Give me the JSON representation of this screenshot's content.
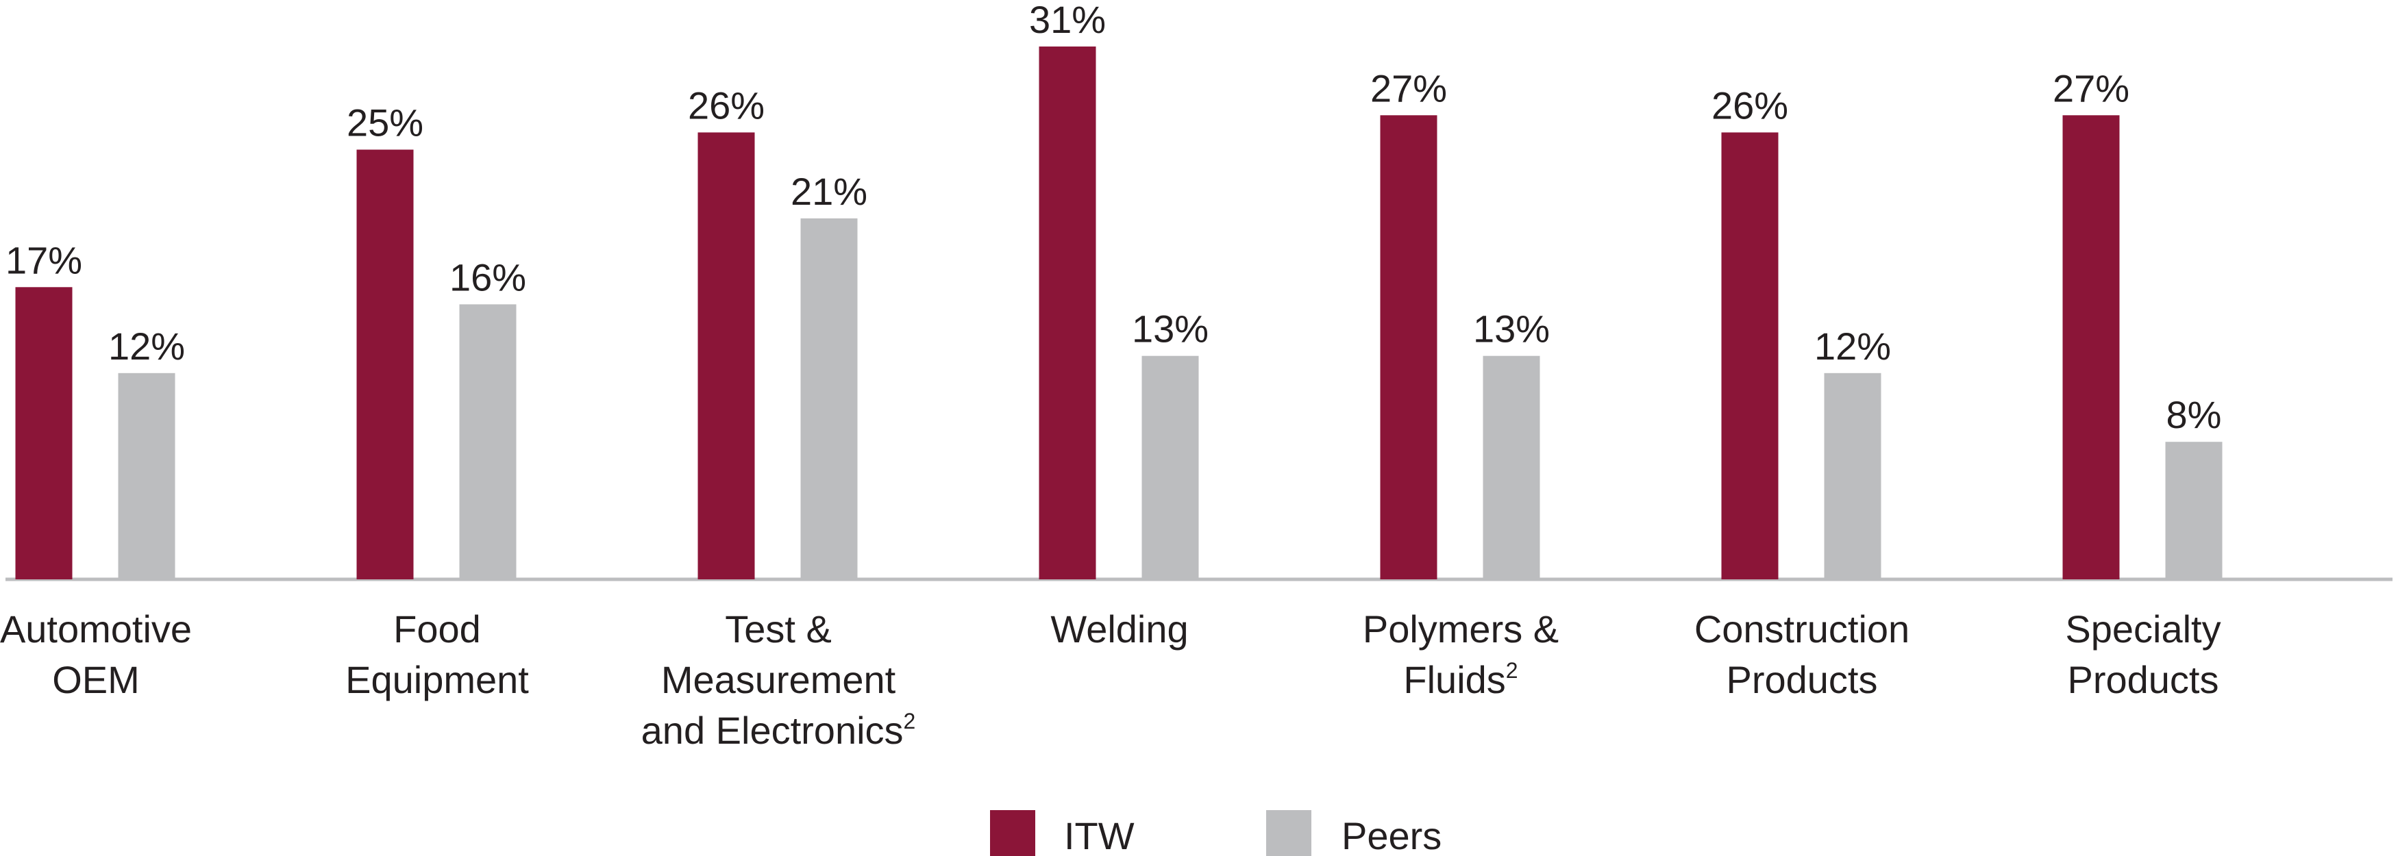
{
  "chart_data": {
    "type": "bar",
    "categories": [
      {
        "lines": [
          "Automotive",
          "OEM"
        ],
        "footnote": ""
      },
      {
        "lines": [
          "Food",
          "Equipment"
        ],
        "footnote": ""
      },
      {
        "lines": [
          "Test &",
          "Measurement",
          "and Electronics"
        ],
        "footnote": "2"
      },
      {
        "lines": [
          "Welding"
        ],
        "footnote": ""
      },
      {
        "lines": [
          "Polymers &",
          "Fluids"
        ],
        "footnote": "2"
      },
      {
        "lines": [
          "Construction",
          "Products"
        ],
        "footnote": ""
      },
      {
        "lines": [
          "Specialty",
          "Products"
        ],
        "footnote": ""
      }
    ],
    "series": [
      {
        "name": "ITW",
        "color": "#8b1538",
        "values": [
          17,
          25,
          26,
          31,
          27,
          26,
          27
        ],
        "labels": [
          "17%",
          "25%",
          "26%",
          "31%",
          "27%",
          "26%",
          "27%"
        ]
      },
      {
        "name": "Peers",
        "color": "#bcbdbf",
        "values": [
          12,
          16,
          21,
          13,
          13,
          12,
          8
        ],
        "labels": [
          "12%",
          "16%",
          "21%",
          "13%",
          "13%",
          "12%",
          "8%"
        ]
      }
    ],
    "title": "",
    "xlabel": "",
    "ylabel": "",
    "ylim": [
      0,
      31
    ],
    "grid": false,
    "legend": "bottom-center",
    "axis_color": "#bcbdbf"
  }
}
